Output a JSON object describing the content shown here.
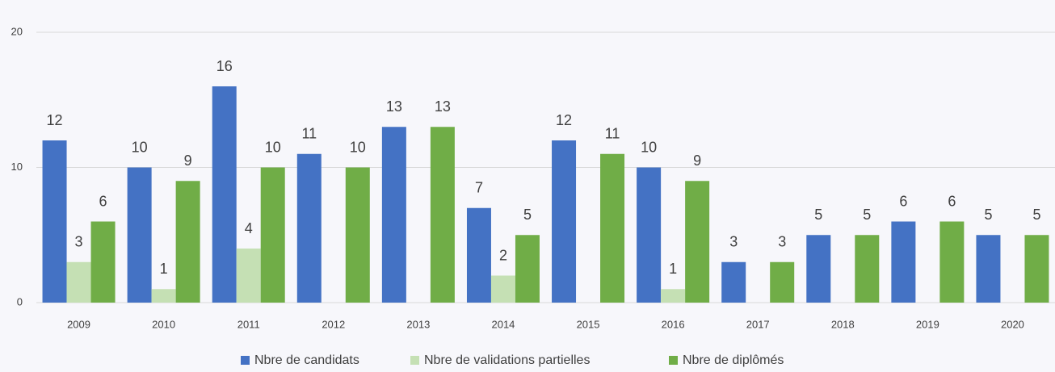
{
  "chart_data": {
    "type": "bar",
    "categories": [
      "2009",
      "2010",
      "2011",
      "2012",
      "2013",
      "2014",
      "2015",
      "2016",
      "2017",
      "2018",
      "2019",
      "2020"
    ],
    "series": [
      {
        "name": "Nbre de candidats",
        "color": "#4472c4",
        "values": [
          12,
          10,
          16,
          11,
          13,
          7,
          12,
          10,
          3,
          5,
          6,
          5
        ]
      },
      {
        "name": "Nbre de validations partielles",
        "color": "#c5e0b4",
        "values": [
          3,
          1,
          4,
          null,
          null,
          2,
          null,
          1,
          null,
          null,
          null,
          null
        ]
      },
      {
        "name": "Nbre de diplômés",
        "color": "#70ad47",
        "values": [
          6,
          9,
          10,
          10,
          13,
          5,
          11,
          9,
          3,
          5,
          6,
          5
        ]
      }
    ],
    "ylim": [
      0,
      20
    ],
    "yticks": [
      0,
      10,
      20
    ],
    "grid": true,
    "legend": "bottom"
  }
}
